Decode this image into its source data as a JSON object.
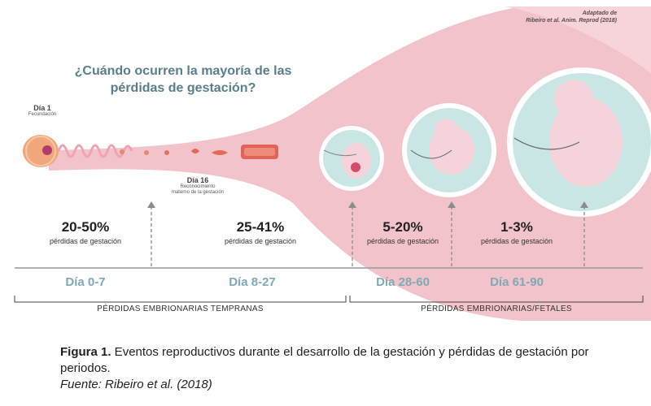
{
  "figure": {
    "credit_line1": "Adaptado de",
    "credit_line2": "Ribeiro et al. Anim. Reprod (2018)",
    "question_line1": "¿Cuándo ocurren la mayoría de las",
    "question_line2": "pérdidas de gestación?",
    "day1": {
      "label": "Día 1",
      "sub": "Fecundación"
    },
    "day16": {
      "label": "Día 16",
      "sub1": "Reconocimiento",
      "sub2": "materno de la gestación"
    },
    "stats": [
      {
        "percent": "20-50%",
        "label": "pérdidas de gestación",
        "range": "Día 0-7"
      },
      {
        "percent": "25-41%",
        "label": "pérdidas de gestación",
        "range": "Día 8-27"
      },
      {
        "percent": "5-20%",
        "label": "pérdidas de gestación",
        "range": "Día 28-60"
      },
      {
        "percent": "1-3%",
        "label": "pérdidas de gestación",
        "range": "Día 61-90"
      }
    ],
    "periods": {
      "early": "PÉRDIDAS EMBRIONARIAS TEMPRANAS",
      "late": "PÉRDIDAS EMBRIONARIAS/FETALES"
    },
    "colors": {
      "pink_band": "#f2c3cb",
      "circle_fill": "#c9e6e4",
      "circle_ring": "#ffffff",
      "embryo": "#f4d3da",
      "egg": "#f0a77c",
      "egg_nucleus": "#b23a6d",
      "range_text": "#7fa9b5",
      "question_text": "#5b7f88"
    }
  },
  "caption": {
    "lead": "Figura 1.",
    "text": " Eventos reproductivos durante el desarrollo de la gestación y pérdidas de gestación por periodos.",
    "source": "Fuente: Ribeiro et al. (2018)"
  }
}
